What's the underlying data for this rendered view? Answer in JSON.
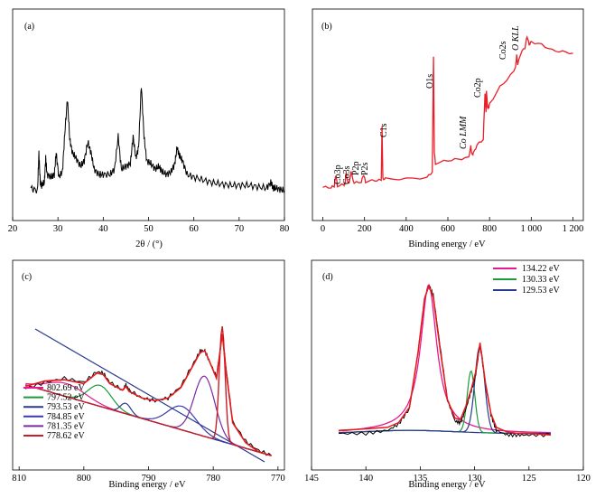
{
  "chart_data": [
    {
      "panel": "(a)",
      "type": "line",
      "xlabel": "2θ / (°)",
      "ylabel": "",
      "xlim": [
        20,
        80
      ],
      "xticks": [
        20,
        30,
        40,
        50,
        60,
        70,
        80
      ],
      "series": [
        {
          "color": "#000000",
          "x": [
            24.0,
            25.5,
            25.8,
            26.1,
            26.4,
            27.0,
            27.3,
            27.6,
            28.5,
            29.2,
            29.6,
            30.2,
            31.0,
            31.5,
            32.1,
            32.6,
            33.2,
            34.0,
            35.0,
            35.8,
            36.6,
            37.3,
            38.0,
            39.0,
            40.0,
            41.5,
            42.5,
            43.3,
            44.0,
            45.0,
            46.0,
            46.6,
            47.2,
            47.8,
            48.4,
            49.0,
            49.6,
            50.5,
            51.5,
            52.3,
            53.0,
            54.0,
            55.0,
            55.8,
            56.3,
            56.8,
            57.5,
            58.5,
            60.0,
            62.0,
            64.0,
            66.0,
            68.0,
            70.0,
            72.0,
            74.0,
            76.0,
            77.0,
            77.5,
            78.0,
            79.0,
            80.0
          ],
          "y": [
            7,
            6,
            20,
            9,
            8,
            9,
            18,
            12,
            11,
            12,
            20,
            11,
            13,
            27,
            40,
            25,
            20,
            18,
            15,
            17,
            24,
            20,
            14,
            12,
            12,
            12,
            14,
            26,
            14,
            15,
            16,
            26,
            18,
            22,
            45,
            26,
            17,
            16,
            14,
            15,
            13,
            12,
            13,
            16,
            22,
            19,
            17,
            12,
            11,
            10,
            9,
            8.5,
            8,
            8,
            8,
            7.5,
            7,
            9,
            7,
            7,
            6.5,
            6
          ]
        }
      ]
    },
    {
      "panel": "(b)",
      "type": "line",
      "xlabel": "Binding energy / eV",
      "ylabel": "",
      "xlim": [
        -50,
        1250
      ],
      "xticks": [
        0,
        200,
        400,
        600,
        800,
        1000,
        1200
      ],
      "xtick_labels": [
        "0",
        "200",
        "400",
        "600",
        "800",
        "1 000",
        "1 200"
      ],
      "annotations": [
        "Co3p",
        "Co3s",
        "P2p",
        "P2s",
        "C1s",
        "O1s",
        "Co LMM",
        "Co2p",
        "Co2s",
        "O KLL"
      ],
      "series": [
        {
          "color": "#e8202a",
          "x": [
            0,
            40,
            55,
            62,
            70,
            100,
            105,
            112,
            120,
            128,
            135,
            150,
            185,
            195,
            205,
            250,
            280,
            284,
            288,
            300,
            400,
            500,
            525,
            531,
            535,
            540,
            600,
            650,
            700,
            710,
            716,
            722,
            740,
            770,
            778,
            783,
            785,
            790,
            795,
            800,
            850,
            900,
            925,
            930,
            935,
            950,
            970,
            980,
            990,
            1000,
            1050,
            1100,
            1150,
            1200
          ],
          "y": [
            3,
            3,
            4,
            12,
            4,
            5,
            5,
            13,
            6,
            7,
            14,
            6,
            7,
            12,
            7,
            8,
            8,
            46,
            9,
            9,
            9,
            10,
            14,
            96,
            28,
            20,
            22,
            23,
            24,
            32,
            26,
            27,
            33,
            37,
            70,
            57,
            72,
            60,
            59,
            62,
            74,
            82,
            88,
            97,
            90,
            98,
            102,
            110,
            104,
            106,
            104,
            100,
            99,
            98
          ]
        }
      ]
    },
    {
      "panel": "(c)",
      "type": "line",
      "xlabel": "Binding energy / eV",
      "ylabel": "",
      "xlim": [
        811,
        769
      ],
      "xticks": [
        810,
        800,
        790,
        780,
        770
      ],
      "legend": [
        "802.69 eV",
        "797.52 eV",
        "793.53 eV",
        "784.85 eV",
        "781.35 eV",
        "778.62 eV"
      ],
      "legend_colors": [
        "#e41a8e",
        "#1a9c3a",
        "#2a3a8c",
        "#3a3ab0",
        "#7a2aa0",
        "#c81e28"
      ],
      "legend_position": "bottom-left",
      "peaks_eV": [
        802.69,
        797.52,
        793.53,
        784.85,
        781.35,
        778.62
      ],
      "series": [
        {
          "name": "raw",
          "color": "#000000",
          "x": [
            809,
            806,
            803,
            800,
            798,
            797,
            796,
            794,
            793.5,
            793,
            791,
            789,
            787,
            785,
            783,
            782,
            781.3,
            780.5,
            779.5,
            778.6,
            778,
            777,
            775,
            773,
            771
          ],
          "y": [
            55,
            60,
            63,
            60,
            68,
            67,
            60,
            54,
            58,
            54,
            48,
            46,
            48,
            57,
            75,
            84,
            84,
            75,
            64,
            98,
            70,
            30,
            15,
            8,
            4
          ]
        },
        {
          "name": "fit envelope",
          "color": "#e41a1c",
          "x": [
            809,
            806,
            803,
            800,
            798,
            797,
            796,
            794,
            793.5,
            793,
            791,
            789,
            787,
            785,
            783,
            782,
            781.3,
            780.5,
            779.5,
            778.6,
            778,
            777,
            775,
            773,
            771
          ],
          "y": [
            57,
            61,
            62,
            59,
            67,
            66,
            59,
            54,
            57,
            53,
            48,
            46,
            48,
            56,
            74,
            83,
            84,
            75,
            63,
            97,
            68,
            29,
            14,
            7,
            4
          ]
        }
      ]
    },
    {
      "panel": "(d)",
      "type": "line",
      "xlabel": "Binding energy / eV",
      "ylabel": "",
      "xlim": [
        145,
        120
      ],
      "xticks": [
        145,
        140,
        135,
        130,
        125,
        120
      ],
      "legend": [
        "134.22 eV",
        "130.33 eV",
        "129.53 eV"
      ],
      "legend_colors": [
        "#e41a8e",
        "#1a9c3a",
        "#2a3a8c"
      ],
      "legend_position": "top-right",
      "peaks_eV": [
        134.22,
        130.33,
        129.53
      ],
      "series": [
        {
          "name": "raw",
          "color": "#000000",
          "x": [
            142.5,
            140,
            138,
            137,
            136,
            135.2,
            134.6,
            134.2,
            133.8,
            133.2,
            132.5,
            131.8,
            131.3,
            130.8,
            130.3,
            129.9,
            129.5,
            129.0,
            128.5,
            128,
            127,
            126,
            125,
            123
          ],
          "y": [
            2,
            2,
            4,
            8,
            18,
            55,
            90,
            98,
            92,
            60,
            24,
            10,
            9,
            18,
            30,
            40,
            60,
            34,
            14,
            4,
            1,
            1,
            1,
            1
          ]
        },
        {
          "name": "fit envelope",
          "color": "#e41a1c",
          "x": [
            142.5,
            140,
            138,
            137,
            136,
            135.2,
            134.6,
            134.2,
            133.8,
            133.2,
            132.5,
            131.8,
            131.3,
            130.8,
            130.3,
            129.9,
            129.5,
            129.0,
            128.5,
            128,
            127,
            126,
            125,
            123
          ],
          "y": [
            4,
            5,
            6,
            9,
            19,
            55,
            90,
            98,
            91,
            58,
            24,
            12,
            11,
            20,
            31,
            42,
            61,
            35,
            15,
            6,
            3,
            2,
            2,
            1
          ]
        }
      ]
    }
  ]
}
